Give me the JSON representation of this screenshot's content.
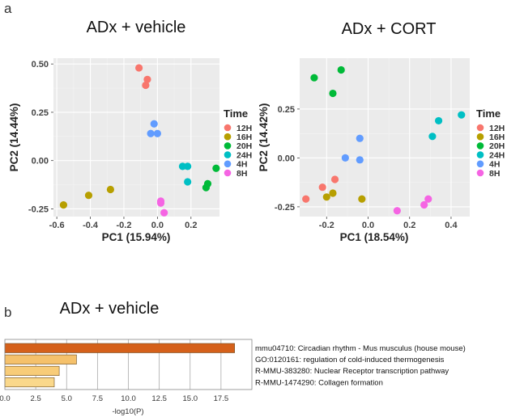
{
  "panel_labels": [
    "a",
    "b"
  ],
  "chart_data": [
    {
      "type": "scatter",
      "title": "ADx + vehicle",
      "xlabel": "PC1 (15.94%)",
      "ylabel": "PC2 (14.44%)",
      "xlim": [
        -0.62,
        0.37
      ],
      "ylim": [
        -0.29,
        0.53
      ],
      "xticks": [
        -0.6,
        -0.4,
        -0.2,
        0.0,
        0.2
      ],
      "xtick_labels": [
        "-0.6",
        "-0.4",
        "-0.2",
        "0.0",
        "0.2"
      ],
      "yticks": [
        -0.25,
        0.0,
        0.25,
        0.5
      ],
      "ytick_labels": [
        "-0.25",
        "0.00",
        "0.25",
        "0.50"
      ],
      "grid": true,
      "legend_title": "Time",
      "legend_position": "right",
      "series": [
        {
          "name": "12H",
          "color": "#F8766D",
          "x": [
            -0.11,
            -0.06,
            -0.07
          ],
          "y": [
            0.48,
            0.42,
            0.39
          ]
        },
        {
          "name": "16H",
          "color": "#B79F00",
          "x": [
            -0.56,
            -0.41,
            -0.28
          ],
          "y": [
            -0.23,
            -0.18,
            -0.15
          ]
        },
        {
          "name": "20H",
          "color": "#00BA38",
          "x": [
            0.35,
            0.3,
            0.29
          ],
          "y": [
            -0.04,
            -0.12,
            -0.14
          ]
        },
        {
          "name": "24H",
          "color": "#00BFC4",
          "x": [
            0.15,
            0.18,
            0.18
          ],
          "y": [
            -0.03,
            -0.03,
            -0.11
          ]
        },
        {
          "name": "4H",
          "color": "#619CFF",
          "x": [
            -0.02,
            -0.04,
            0.0
          ],
          "y": [
            0.19,
            0.14,
            0.14
          ]
        },
        {
          "name": "8H",
          "color": "#F564E3",
          "x": [
            0.02,
            0.02,
            0.04
          ],
          "y": [
            -0.21,
            -0.22,
            -0.27
          ]
        }
      ]
    },
    {
      "type": "scatter",
      "title": "ADx + CORT",
      "xlabel": "PC1 (18.54%)",
      "ylabel": "PC2 (14.42%)",
      "xlim": [
        -0.33,
        0.49
      ],
      "ylim": [
        -0.3,
        0.51
      ],
      "xticks": [
        -0.2,
        0.0,
        0.2,
        0.4
      ],
      "xtick_labels": [
        "-0.2",
        "0.0",
        "0.2",
        "0.4"
      ],
      "yticks": [
        -0.25,
        0.0,
        0.25
      ],
      "ytick_labels": [
        "-0.25",
        "0.00",
        "0.25"
      ],
      "grid": true,
      "legend_title": "Time",
      "legend_position": "right",
      "series": [
        {
          "name": "12H",
          "color": "#F8766D",
          "x": [
            -0.3,
            -0.22,
            -0.16
          ],
          "y": [
            -0.21,
            -0.15,
            -0.11
          ]
        },
        {
          "name": "16H",
          "color": "#B79F00",
          "x": [
            -0.2,
            -0.17,
            -0.03
          ],
          "y": [
            -0.2,
            -0.18,
            -0.21
          ]
        },
        {
          "name": "20H",
          "color": "#00BA38",
          "x": [
            -0.26,
            -0.17,
            -0.13
          ],
          "y": [
            0.41,
            0.33,
            0.45
          ]
        },
        {
          "name": "24H",
          "color": "#00BFC4",
          "x": [
            0.31,
            0.34,
            0.45
          ],
          "y": [
            0.11,
            0.19,
            0.22
          ]
        },
        {
          "name": "4H",
          "color": "#619CFF",
          "x": [
            -0.11,
            -0.04,
            -0.04
          ],
          "y": [
            0.0,
            0.1,
            -0.01
          ]
        },
        {
          "name": "8H",
          "color": "#F564E3",
          "x": [
            0.14,
            0.27,
            0.29
          ],
          "y": [
            -0.27,
            -0.24,
            -0.21
          ]
        }
      ]
    },
    {
      "type": "bar",
      "orientation": "horizontal",
      "title": "ADx + vehicle",
      "xlabel": "-log10(P)",
      "xlim": [
        0,
        20
      ],
      "xticks": [
        0.0,
        2.5,
        5.0,
        7.5,
        10.0,
        12.5,
        15.0,
        17.5
      ],
      "xtick_labels": [
        "0.0",
        "2.5",
        "5.0",
        "7.5",
        "10.0",
        "12.5",
        "15.0",
        "17.5"
      ],
      "categories": [
        "mmu04710: Circadian rhythm - Mus musculus (house mouse)",
        "GO:0120161: regulation of cold-induced thermogenesis",
        "R-MMU-383280: Nuclear Receptor transcription pathway",
        "R-MMU-1474290: Collagen formation"
      ],
      "values": [
        18.6,
        5.8,
        4.4,
        4.0
      ],
      "colors": [
        "#D5601A",
        "#F5C16B",
        "#F8CC78",
        "#FAD88B"
      ]
    }
  ]
}
